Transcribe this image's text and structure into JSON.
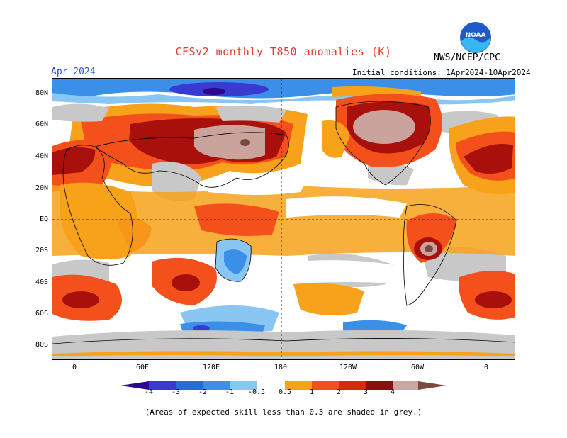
{
  "header": {
    "title": "CFSv2 monthly T850 anomalies (K)",
    "agency": "NWS/NCEP/CPC",
    "month": "Apr 2024",
    "initial_conditions": "Initial conditions: 1Apr2024-10Apr2024",
    "logo_text": "NOAA"
  },
  "map": {
    "lat_labels": [
      "80N",
      "60N",
      "40N",
      "20N",
      "EQ",
      "20S",
      "40S",
      "60S",
      "80S"
    ],
    "lon_labels": [
      "0",
      "60E",
      "120E",
      "180",
      "120W",
      "60W",
      "0"
    ]
  },
  "colorbar": {
    "labels": [
      "-4",
      "-3",
      "-2",
      "-1",
      "-0.5",
      "0.5",
      "1",
      "2",
      "3",
      "4"
    ],
    "colors": [
      "#2a0a8a",
      "#3a3ad0",
      "#2a6ad8",
      "#3a90e8",
      "#8ac6f2",
      "#ffffff",
      "#f7a21a",
      "#f4501c",
      "#d42a10",
      "#8e0e0e",
      "#c8a8a0",
      "#7a4a40"
    ]
  },
  "colors": {
    "skill_grey": "#c8c8c8",
    "warm_light": "#f7a21a",
    "warm_mid": "#f4501c",
    "warm_dark": "#a8100c",
    "warm_brown": "#c9a39c",
    "cool_light": "#8ac6f2",
    "cool_mid": "#3a90e8"
  },
  "footnote": "(Areas of expected skill less than 0.3 are shaded in grey.)"
}
